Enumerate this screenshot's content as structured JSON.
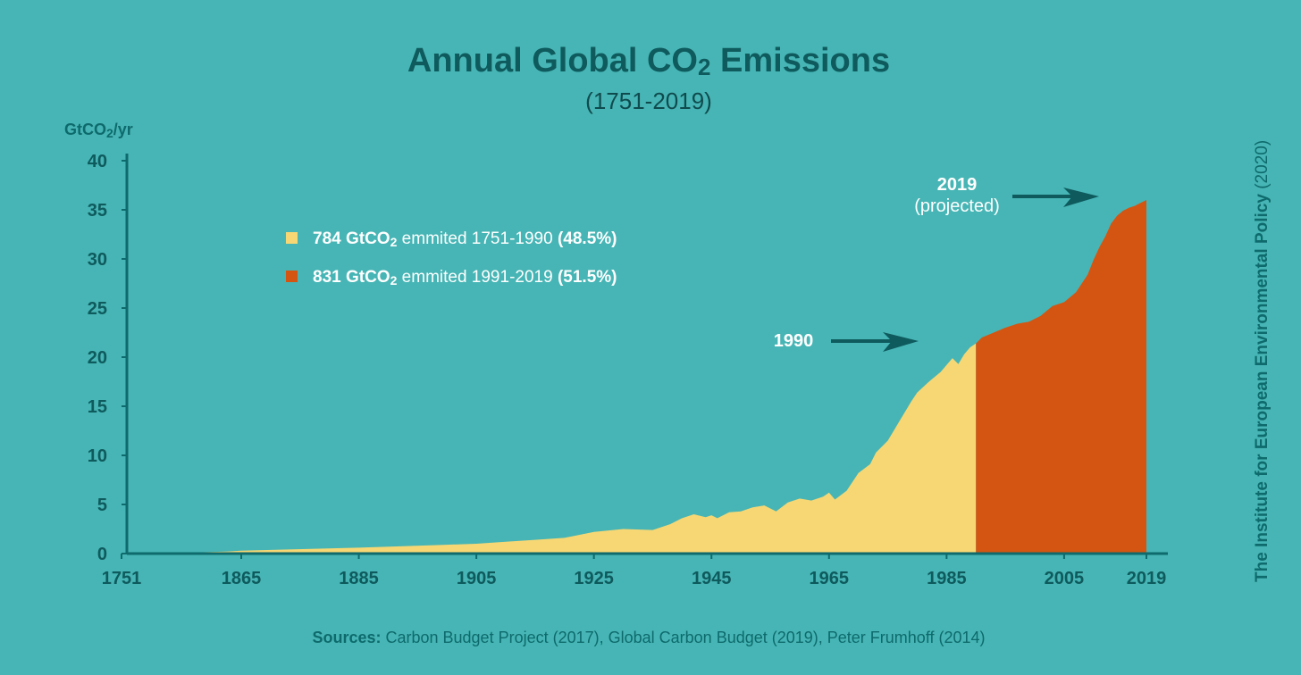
{
  "chart_data": {
    "type": "area",
    "title": "Annual Global CO",
    "title_sub": "2",
    "title_rest": " Emissions",
    "subtitle": "(1751-2019)",
    "ylabel": "GtCO",
    "ylabel_sub": "2",
    "ylabel_rest": "/yr",
    "ylim": [
      0,
      40
    ],
    "yticks": [
      "0",
      "5",
      "10",
      "15",
      "20",
      "25",
      "30",
      "35",
      "40"
    ],
    "xticks": [
      "1751",
      "1865",
      "1885",
      "1905",
      "1925",
      "1945",
      "1965",
      "1985",
      "2005",
      "2019"
    ],
    "series": [
      {
        "name": "784 GtCO2 emmited 1751-1990 (48.5%)",
        "color": "#f7d774",
        "x": [
          1751,
          1800,
          1850,
          1865,
          1885,
          1900,
          1905,
          1910,
          1915,
          1920,
          1925,
          1930,
          1935,
          1938,
          1940,
          1942,
          1944,
          1945,
          1946,
          1948,
          1950,
          1952,
          1954,
          1956,
          1958,
          1960,
          1962,
          1964,
          1965,
          1966,
          1968,
          1970,
          1972,
          1973,
          1975,
          1977,
          1979,
          1980,
          1982,
          1984,
          1985,
          1986,
          1987,
          1988,
          1989,
          1990
        ],
        "y": [
          0,
          0.05,
          0.2,
          0.3,
          0.6,
          0.9,
          1.0,
          1.2,
          1.4,
          1.6,
          2.2,
          2.5,
          2.4,
          3.0,
          3.6,
          4.0,
          3.7,
          3.9,
          3.6,
          4.2,
          4.3,
          4.7,
          4.9,
          4.3,
          5.2,
          5.6,
          5.4,
          5.8,
          6.2,
          5.5,
          6.4,
          8.2,
          9.1,
          10.3,
          11.5,
          13.5,
          15.5,
          16.4,
          17.5,
          18.5,
          19.2,
          19.9,
          19.3,
          20.3,
          21.0,
          21.4
        ]
      },
      {
        "name": "831 GtCO2 emmited 1991-2019 (51.5%)",
        "color": "#d45512",
        "x": [
          1990,
          1991,
          1993,
          1995,
          1997,
          1999,
          2001,
          2003,
          2005,
          2007,
          2009,
          2010,
          2011,
          2012,
          2013,
          2014,
          2015,
          2016,
          2017,
          2018,
          2019
        ],
        "y": [
          21.4,
          22.0,
          22.5,
          23.0,
          23.4,
          23.6,
          24.2,
          25.2,
          25.6,
          26.6,
          28.4,
          29.9,
          31.2,
          32.3,
          33.6,
          34.4,
          34.9,
          35.2,
          35.4,
          35.7,
          36.0
        ]
      }
    ],
    "legend": [
      {
        "value": "784 GtCO",
        "sub": "2",
        "text": " emmited 1751-1990 ",
        "pct": "(48.5%)",
        "color": "#f7d774"
      },
      {
        "value": "831 GtCO",
        "sub": "2",
        "text": " emmited 1991-2019 ",
        "pct": "(51.5%)",
        "color": "#d45512"
      }
    ],
    "annotations": [
      {
        "label": "1990"
      },
      {
        "label": "2019",
        "note": "(projected)"
      }
    ],
    "sources_label": "Sources:",
    "sources_text": " Carbon Budget Project (2017), Global Carbon Budget (2019), Peter Frumhoff (2014)",
    "side_credit": "The Institute for European Environmental Policy",
    "side_year": " (2020)",
    "colors": {
      "background": "#47b5b5",
      "axis": "#0e6a6c",
      "title": "#0e5a5d",
      "arrow": "#0e5a5d"
    }
  }
}
